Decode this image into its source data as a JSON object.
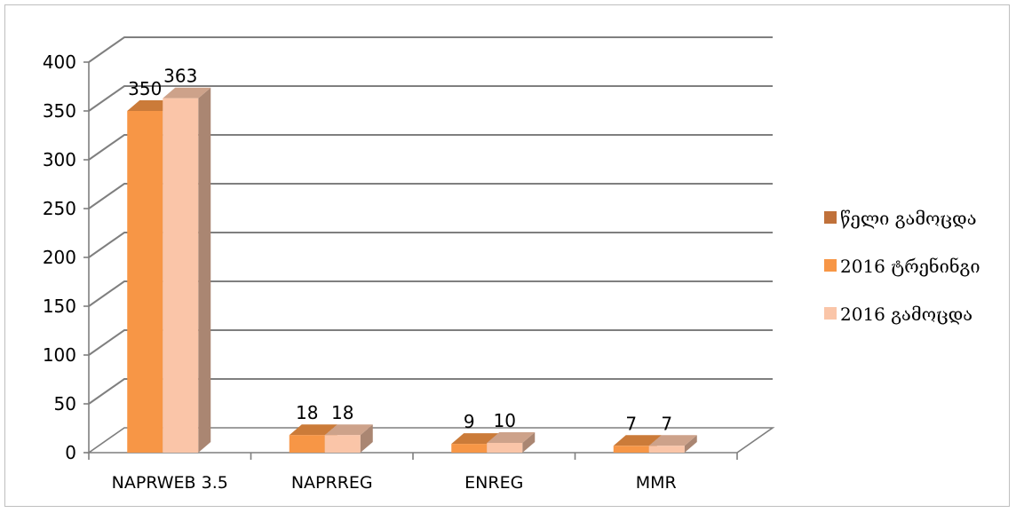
{
  "chart_data": {
    "type": "bar",
    "style": "3d-clustered-column",
    "categories": [
      "NAPRWEB 3.5",
      "NAPRREG",
      "ENREG",
      "MMR"
    ],
    "series": [
      {
        "name": "წელი გამოცდა",
        "color": "#c0713a",
        "values": [
          0,
          0,
          0,
          0
        ]
      },
      {
        "name": "2016 ტრენინგი",
        "color": "#f79646",
        "values": [
          350,
          18,
          9,
          7
        ]
      },
      {
        "name": "2016 გამოცდა",
        "color": "#fac5a8",
        "values": [
          363,
          18,
          10,
          7
        ]
      }
    ],
    "y_ticks": [
      "0",
      "50",
      "100",
      "150",
      "200",
      "250",
      "300",
      "350",
      "400"
    ],
    "ylim": [
      0,
      400
    ],
    "grid": true,
    "legend_position": "right"
  }
}
